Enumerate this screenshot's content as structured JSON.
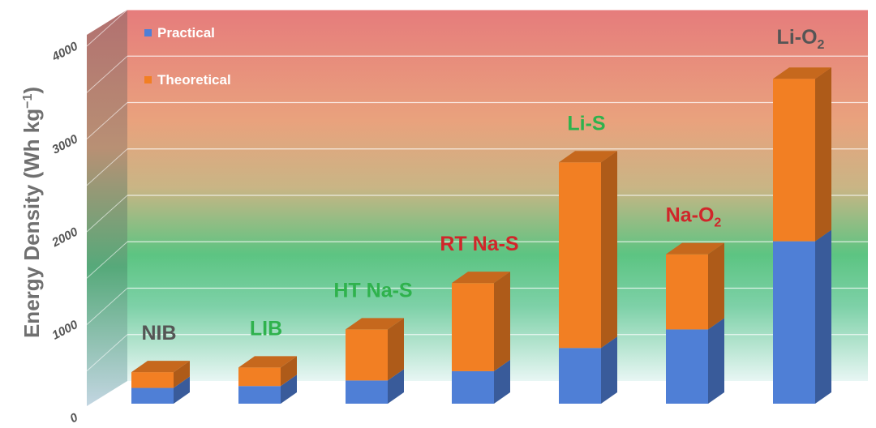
{
  "chart_data": {
    "type": "bar",
    "subtype": "stacked-3d",
    "title": "",
    "xlabel": "",
    "ylabel": "Energy Density (Wh kg",
    "ylabel_superscript": "−1",
    "ylabel_close": ")",
    "ylim": [
      0,
      4000
    ],
    "yticks": [
      "0",
      "1000",
      "2000",
      "3000",
      "4000"
    ],
    "categories": [
      "NIB",
      "LIB",
      "HT Na-S",
      "RT Na-S",
      "Li-S",
      "Na-O",
      "Li-O"
    ],
    "category_subscripts": [
      "",
      "",
      "",
      "",
      "",
      "2",
      "2"
    ],
    "category_label_colors": [
      "#555555",
      "#2fb24d",
      "#2fb24d",
      "#d0262a",
      "#2fb24d",
      "#d0262a",
      "#555555"
    ],
    "series": [
      {
        "name": "Practical",
        "color": "#4f7fd6",
        "values": [
          170,
          190,
          250,
          350,
          600,
          800,
          1750
        ]
      },
      {
        "name": "Theoretical",
        "color": "#f27f23",
        "values": [
          170,
          200,
          550,
          950,
          2000,
          810,
          1750
        ]
      }
    ],
    "legend": {
      "position": "top-left",
      "items": [
        "Practical",
        "Theoretical"
      ]
    },
    "grid": true,
    "background_gradient": [
      "#e67979",
      "#e9a57c",
      "#5cc482",
      "#e6f5f3"
    ]
  }
}
